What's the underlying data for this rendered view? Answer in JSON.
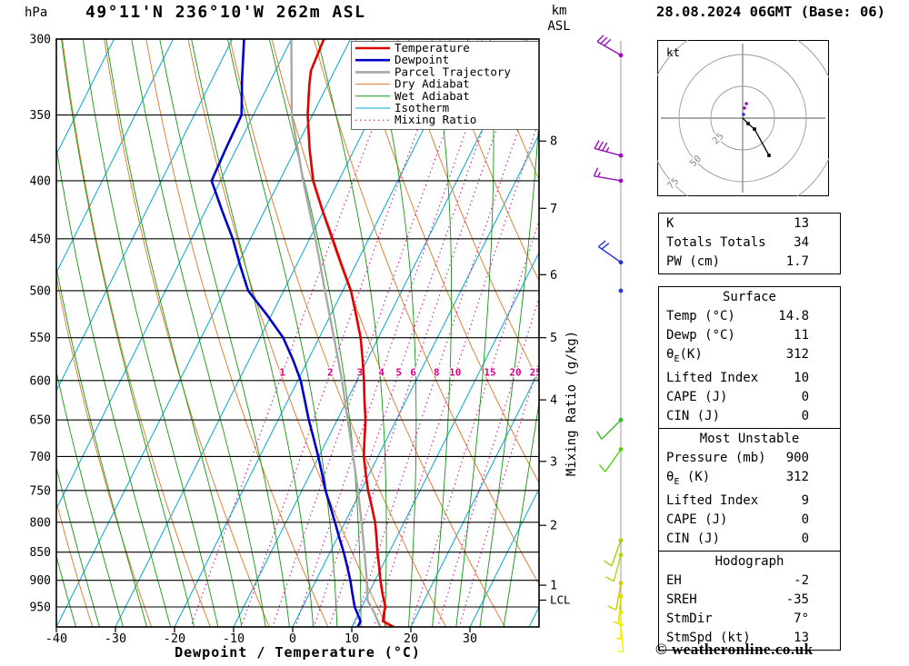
{
  "header": {
    "title": "49°11'N 236°10'W 262m ASL",
    "datetime": "28.08.2024 06GMT (Base: 06)",
    "copyright": "© weatheronline.co.uk"
  },
  "labels": {
    "hpa": "hPa",
    "km": "km",
    "asl": "ASL",
    "lcl": "LCL",
    "x_axis": "Dewpoint / Temperature (°C)",
    "mixing_axis": "Mixing Ratio (g/kg)"
  },
  "legend": [
    {
      "label": "Temperature",
      "color": "#e10000",
      "width": 2.6,
      "dash": ""
    },
    {
      "label": "Dewpoint",
      "color": "#0000c8",
      "width": 2.6,
      "dash": ""
    },
    {
      "label": "Parcel Trajectory",
      "color": "#a8a8a8",
      "width": 2.6,
      "dash": ""
    },
    {
      "label": "Dry Adiabat",
      "color": "#dd7622",
      "width": 1,
      "dash": ""
    },
    {
      "label": "Wet Adiabat",
      "color": "#119911",
      "width": 1,
      "dash": ""
    },
    {
      "label": "Isotherm",
      "color": "#00a8d8",
      "width": 1,
      "dash": ""
    },
    {
      "label": "Mixing Ratio",
      "color": "#d6008c",
      "width": 1,
      "dash": "1.5,3.5"
    }
  ],
  "chart_data": {
    "type": "skewt_logp_sounding",
    "pressure_levels_hpa": [
      300,
      350,
      400,
      450,
      500,
      550,
      600,
      650,
      700,
      750,
      800,
      850,
      900,
      950
    ],
    "temp_ticks_c": [
      -40,
      -30,
      -20,
      -10,
      0,
      10,
      20,
      30
    ],
    "km_ticks": [
      {
        "km": 8,
        "p": 369
      },
      {
        "km": 7,
        "p": 423
      },
      {
        "km": 6,
        "p": 484
      },
      {
        "km": 5,
        "p": 550
      },
      {
        "km": 4,
        "p": 624
      },
      {
        "km": 3,
        "p": 707
      },
      {
        "km": 2,
        "p": 805
      },
      {
        "km": 1,
        "p": 909
      }
    ],
    "lcl_pressure": 937,
    "mixing_ratio_gkg": [
      1,
      2,
      3,
      4,
      5,
      6,
      8,
      10,
      15,
      20,
      25
    ],
    "isotherms_c": {
      "min": -100,
      "max": 40,
      "step": 10
    },
    "dry_adiabats_k": {
      "min": 240,
      "max": 390,
      "step": 10
    },
    "wet_adiabats_c": {
      "min": -40,
      "max": 36,
      "step": 4
    },
    "temperature_profile": [
      [
        989,
        17.0
      ],
      [
        978,
        14.8
      ],
      [
        960,
        14.2
      ],
      [
        950,
        14.0
      ],
      [
        925,
        12.4
      ],
      [
        900,
        10.9
      ],
      [
        875,
        9.5
      ],
      [
        850,
        8.0
      ],
      [
        825,
        6.6
      ],
      [
        800,
        5.1
      ],
      [
        775,
        3.2
      ],
      [
        750,
        1.2
      ],
      [
        725,
        -0.6
      ],
      [
        700,
        -2.4
      ],
      [
        675,
        -3.8
      ],
      [
        650,
        -5.2
      ],
      [
        625,
        -7.0
      ],
      [
        600,
        -8.8
      ],
      [
        575,
        -10.8
      ],
      [
        550,
        -13.0
      ],
      [
        525,
        -15.7
      ],
      [
        500,
        -18.6
      ],
      [
        475,
        -22.3
      ],
      [
        450,
        -26.1
      ],
      [
        425,
        -30.2
      ],
      [
        400,
        -34.3
      ],
      [
        375,
        -37.6
      ],
      [
        350,
        -40.8
      ],
      [
        330,
        -43.0
      ],
      [
        320,
        -44.0
      ],
      [
        300,
        -44.5
      ]
    ],
    "dewpoint_profile": [
      [
        989,
        11.0
      ],
      [
        978,
        11.0
      ],
      [
        960,
        9.6
      ],
      [
        950,
        8.8
      ],
      [
        925,
        7.3
      ],
      [
        900,
        5.8
      ],
      [
        875,
        4.1
      ],
      [
        850,
        2.3
      ],
      [
        825,
        0.3
      ],
      [
        800,
        -1.7
      ],
      [
        775,
        -3.8
      ],
      [
        750,
        -6.0
      ],
      [
        725,
        -8.0
      ],
      [
        700,
        -10.1
      ],
      [
        675,
        -12.4
      ],
      [
        650,
        -14.8
      ],
      [
        625,
        -17.1
      ],
      [
        600,
        -19.5
      ],
      [
        575,
        -22.6
      ],
      [
        550,
        -26.1
      ],
      [
        525,
        -30.8
      ],
      [
        500,
        -36.0
      ],
      [
        475,
        -39.5
      ],
      [
        450,
        -43.0
      ],
      [
        425,
        -47.2
      ],
      [
        400,
        -51.5
      ],
      [
        375,
        -51.8
      ],
      [
        350,
        -52.0
      ],
      [
        325,
        -55.0
      ],
      [
        300,
        -58.0
      ]
    ],
    "parcel_profile": [
      [
        989,
        14.8
      ],
      [
        960,
        12.5
      ],
      [
        937,
        10.4
      ],
      [
        900,
        8.6
      ],
      [
        850,
        5.8
      ],
      [
        800,
        2.8
      ],
      [
        750,
        -0.5
      ],
      [
        700,
        -4.2
      ],
      [
        650,
        -8.2
      ],
      [
        600,
        -12.5
      ],
      [
        550,
        -17.5
      ],
      [
        500,
        -23.0
      ],
      [
        450,
        -29.0
      ],
      [
        400,
        -36.0
      ],
      [
        350,
        -43.5
      ],
      [
        300,
        -50.0
      ]
    ],
    "winds": [
      {
        "p": 310,
        "dir": 300,
        "spd": 30,
        "color": "#9911bb"
      },
      {
        "p": 380,
        "dir": 285,
        "spd": 35,
        "color": "#9911bb"
      },
      {
        "p": 400,
        "dir": 280,
        "spd": 15,
        "color": "#9911bb"
      },
      {
        "p": 472,
        "dir": 305,
        "spd": 20,
        "color": "#2233dd"
      },
      {
        "p": 500,
        "dir": 0,
        "spd": 0,
        "color": "#2233dd"
      },
      {
        "p": 650,
        "dir": 225,
        "spd": 12,
        "color": "#33bb22"
      },
      {
        "p": 690,
        "dir": 215,
        "spd": 10,
        "color": "#55cc11"
      },
      {
        "p": 830,
        "dir": 200,
        "spd": 10,
        "color": "#aacc00"
      },
      {
        "p": 855,
        "dir": 195,
        "spd": 8,
        "color": "#b8d400"
      },
      {
        "p": 905,
        "dir": 190,
        "spd": 8,
        "color": "#cccc00"
      },
      {
        "p": 930,
        "dir": 185,
        "spd": 7,
        "color": "#dddd00"
      },
      {
        "p": 960,
        "dir": 180,
        "spd": 6,
        "color": "#e8e800"
      },
      {
        "p": 985,
        "dir": 175,
        "spd": 5,
        "color": "#f0f000"
      }
    ]
  },
  "hodograph": {
    "unit": "kt",
    "rings_kt": [
      25,
      50,
      75
    ],
    "trace_kt": [
      [
        0,
        0
      ],
      [
        4.3,
        -4.3
      ],
      [
        9.3,
        -8.6
      ],
      [
        20.7,
        -29.3
      ]
    ],
    "extra_dots": [
      {
        "u": 1.4,
        "v": 7.9,
        "color": "#9911bb"
      },
      {
        "u": 2.9,
        "v": 11.4,
        "color": "#9911bb"
      },
      {
        "u": 0.7,
        "v": 2.9,
        "color": "#2233dd"
      }
    ]
  },
  "tables": [
    {
      "name": "indices",
      "title": null,
      "rows": [
        [
          "K",
          "13"
        ],
        [
          "Totals Totals",
          "34"
        ],
        [
          "PW (cm)",
          "1.7"
        ]
      ]
    },
    {
      "name": "surface",
      "title": "Surface",
      "rows": [
        [
          "Temp (°C)",
          "14.8"
        ],
        [
          "Dewp (°C)",
          "11"
        ],
        [
          "θE(K)",
          "312"
        ],
        [
          "Lifted Index",
          "10"
        ],
        [
          "CAPE (J)",
          "0"
        ],
        [
          "CIN (J)",
          "0"
        ]
      ]
    },
    {
      "name": "most-unstable",
      "title": "Most Unstable",
      "rows": [
        [
          "Pressure (mb)",
          "900"
        ],
        [
          "θE (K)",
          "312"
        ],
        [
          "Lifted Index",
          "9"
        ],
        [
          "CAPE (J)",
          "0"
        ],
        [
          "CIN (J)",
          "0"
        ]
      ]
    },
    {
      "name": "hodograph",
      "title": "Hodograph",
      "rows": [
        [
          "EH",
          "-2"
        ],
        [
          "SREH",
          "-35"
        ],
        [
          "StmDir",
          "7°"
        ],
        [
          "StmSpd (kt)",
          "13"
        ]
      ]
    }
  ]
}
